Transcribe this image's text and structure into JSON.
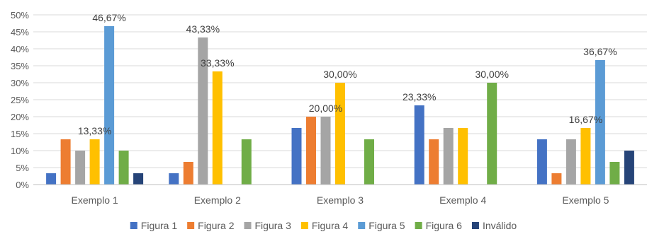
{
  "chart_data": {
    "type": "bar",
    "categories": [
      "Exemplo 1",
      "Exemplo 2",
      "Exemplo 3",
      "Exemplo 4",
      "Exemplo 5"
    ],
    "ylim": [
      0,
      50
    ],
    "yticks": [
      "0%",
      "5%",
      "10%",
      "15%",
      "20%",
      "25%",
      "30%",
      "35%",
      "40%",
      "45%",
      "50%"
    ],
    "grid": true,
    "legend_position": "bottom",
    "series": [
      {
        "name": "Figura 1",
        "color": "#4472C4",
        "values": [
          3.33,
          3.33,
          16.67,
          23.33,
          13.33
        ]
      },
      {
        "name": "Figura 2",
        "color": "#ED7D31",
        "values": [
          13.33,
          6.67,
          20.0,
          13.33,
          3.33
        ]
      },
      {
        "name": "Figura 3",
        "color": "#A5A5A5",
        "values": [
          10.0,
          43.33,
          20.0,
          16.67,
          13.33
        ]
      },
      {
        "name": "Figura 4",
        "color": "#FFC000",
        "values": [
          13.33,
          33.33,
          30.0,
          16.67,
          16.67
        ]
      },
      {
        "name": "Figura 5",
        "color": "#5B9BD5",
        "values": [
          46.67,
          0,
          0,
          0,
          36.67
        ]
      },
      {
        "name": "Figura 6",
        "color": "#70AD47",
        "values": [
          10.0,
          13.33,
          13.33,
          30.0,
          6.67
        ]
      },
      {
        "name": "Inválido",
        "color": "#264478",
        "values": [
          3.33,
          0,
          0,
          0,
          10.0
        ]
      }
    ],
    "data_labels": [
      {
        "category": 0,
        "series": 3,
        "text": "13,33%"
      },
      {
        "category": 0,
        "series": 4,
        "text": "46,67%"
      },
      {
        "category": 1,
        "series": 2,
        "text": "43,33%"
      },
      {
        "category": 1,
        "series": 3,
        "text": "33,33%"
      },
      {
        "category": 2,
        "series": 2,
        "text": "20,00%"
      },
      {
        "category": 2,
        "series": 3,
        "text": "30,00%"
      },
      {
        "category": 3,
        "series": 0,
        "text": "23,33%"
      },
      {
        "category": 3,
        "series": 5,
        "text": "30,00%"
      },
      {
        "category": 4,
        "series": 3,
        "text": "16,67%"
      },
      {
        "category": 4,
        "series": 4,
        "text": "36,67%"
      }
    ]
  }
}
